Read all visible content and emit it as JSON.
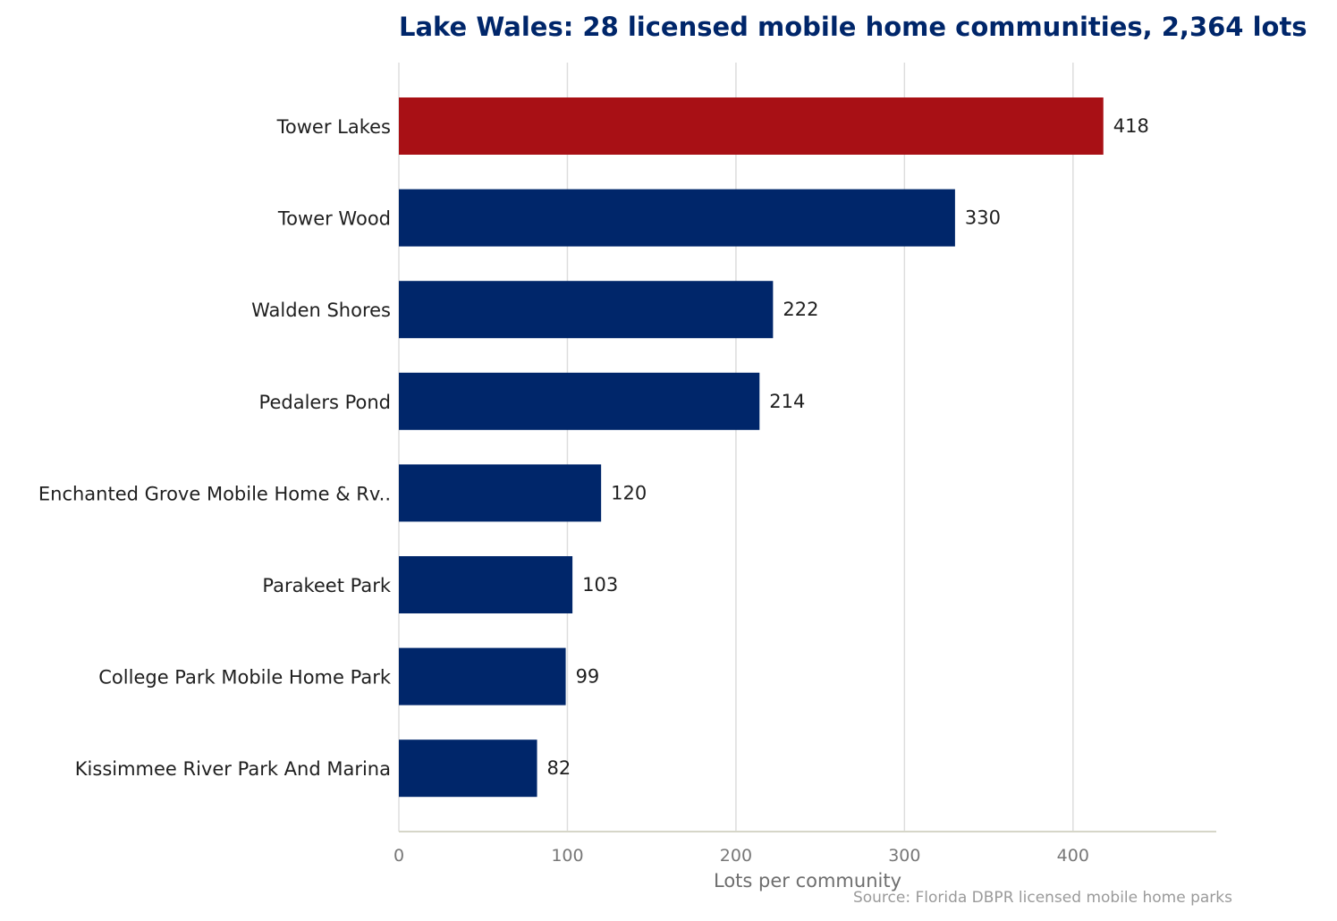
{
  "chart_data": {
    "type": "bar",
    "orientation": "horizontal",
    "title": "Lake Wales: 28 licensed mobile home communities, 2,364 lots",
    "xlabel": "Lots per community",
    "ylabel": "",
    "source": "Source: Florida DBPR licensed mobile home parks",
    "categories": [
      "Tower Lakes",
      "Tower Wood",
      "Walden Shores",
      "Pedalers Pond",
      "Enchanted Grove Mobile Home & Rv..",
      "Parakeet Park",
      "College Park Mobile Home Park",
      "Kissimmee River Park And Marina"
    ],
    "values": [
      418,
      330,
      222,
      214,
      120,
      103,
      99,
      82
    ],
    "xticks": [
      0,
      100,
      200,
      300,
      400
    ],
    "xlim": [
      0,
      485
    ],
    "grid": "vertical",
    "highlight_index": 0,
    "colors": {
      "bar": "#00266a",
      "highlight": "#a81015",
      "grid": "#dddddd",
      "axis": "#d6d6c8"
    }
  }
}
